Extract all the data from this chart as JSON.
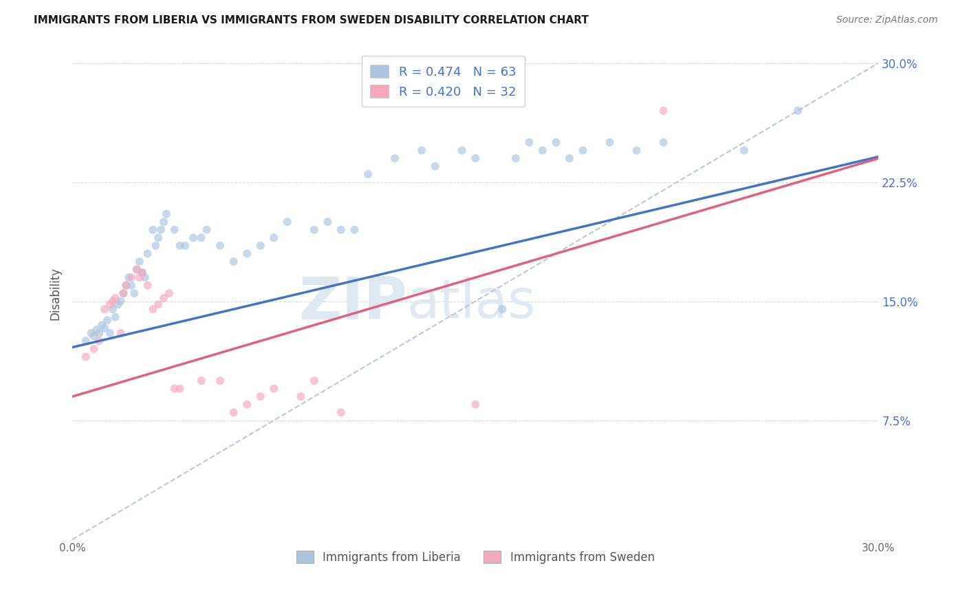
{
  "title": "IMMIGRANTS FROM LIBERIA VS IMMIGRANTS FROM SWEDEN DISABILITY CORRELATION CHART",
  "source": "Source: ZipAtlas.com",
  "ylabel": "Disability",
  "xlim": [
    0.0,
    0.3
  ],
  "ylim": [
    0.0,
    0.31
  ],
  "liberia_x": [
    0.005,
    0.007,
    0.008,
    0.009,
    0.01,
    0.011,
    0.012,
    0.013,
    0.014,
    0.015,
    0.016,
    0.017,
    0.018,
    0.019,
    0.02,
    0.021,
    0.022,
    0.023,
    0.024,
    0.025,
    0.026,
    0.027,
    0.028,
    0.03,
    0.031,
    0.032,
    0.033,
    0.034,
    0.035,
    0.038,
    0.04,
    0.042,
    0.045,
    0.048,
    0.05,
    0.055,
    0.06,
    0.065,
    0.07,
    0.075,
    0.08,
    0.09,
    0.095,
    0.1,
    0.105,
    0.11,
    0.12,
    0.13,
    0.135,
    0.145,
    0.15,
    0.16,
    0.165,
    0.17,
    0.175,
    0.18,
    0.185,
    0.19,
    0.2,
    0.21,
    0.22,
    0.25,
    0.27
  ],
  "liberia_y": [
    0.125,
    0.13,
    0.128,
    0.132,
    0.13,
    0.135,
    0.133,
    0.138,
    0.13,
    0.145,
    0.14,
    0.148,
    0.15,
    0.155,
    0.16,
    0.165,
    0.16,
    0.155,
    0.17,
    0.175,
    0.168,
    0.165,
    0.18,
    0.195,
    0.185,
    0.19,
    0.195,
    0.2,
    0.205,
    0.195,
    0.185,
    0.185,
    0.19,
    0.19,
    0.195,
    0.185,
    0.175,
    0.18,
    0.185,
    0.19,
    0.2,
    0.195,
    0.2,
    0.195,
    0.195,
    0.23,
    0.24,
    0.245,
    0.235,
    0.245,
    0.24,
    0.145,
    0.24,
    0.25,
    0.245,
    0.25,
    0.24,
    0.245,
    0.25,
    0.245,
    0.25,
    0.245,
    0.27
  ],
  "sweden_x": [
    0.005,
    0.008,
    0.01,
    0.012,
    0.014,
    0.015,
    0.016,
    0.018,
    0.019,
    0.02,
    0.022,
    0.024,
    0.025,
    0.026,
    0.028,
    0.03,
    0.032,
    0.034,
    0.036,
    0.038,
    0.04,
    0.048,
    0.055,
    0.06,
    0.065,
    0.07,
    0.075,
    0.085,
    0.09,
    0.1,
    0.15,
    0.22
  ],
  "sweden_y": [
    0.115,
    0.12,
    0.125,
    0.145,
    0.148,
    0.15,
    0.152,
    0.13,
    0.155,
    0.16,
    0.165,
    0.17,
    0.165,
    0.168,
    0.16,
    0.145,
    0.148,
    0.152,
    0.155,
    0.095,
    0.095,
    0.1,
    0.1,
    0.08,
    0.085,
    0.09,
    0.095,
    0.09,
    0.1,
    0.08,
    0.085,
    0.27
  ],
  "liberia_dot_color": "#aac4e0",
  "sweden_dot_color": "#f5a8bc",
  "liberia_line_color": "#4472c4",
  "sweden_line_color": "#e06080",
  "dashed_line_color": "#b8c8d8",
  "dot_size": 75,
  "dot_alpha": 0.65,
  "background_color": "#ffffff",
  "grid_color": "#d0d8e0",
  "watermark_zip": "ZIP",
  "watermark_atlas": "atlas",
  "watermark_color": "#dde8f2",
  "legend_entries": [
    {
      "label": "R = 0.474   N = 63",
      "color": "#aac4e0"
    },
    {
      "label": "R = 0.420   N = 32",
      "color": "#f5a8bc"
    }
  ],
  "legend_bottom": [
    {
      "label": "Immigrants from Liberia",
      "color": "#aac4e0"
    },
    {
      "label": "Immigrants from Sweden",
      "color": "#f5a8bc"
    }
  ]
}
